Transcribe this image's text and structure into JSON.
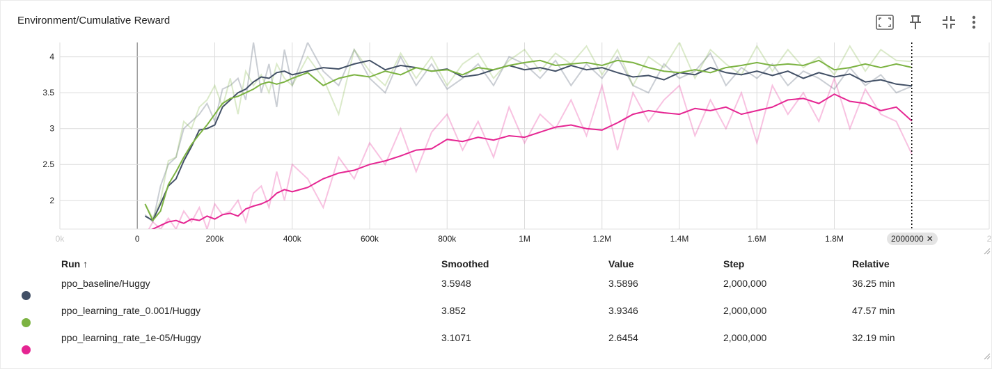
{
  "card": {
    "title": "Environment/Cumulative Reward",
    "toolbar": [
      {
        "name": "fullscreen-icon"
      },
      {
        "name": "pin-icon"
      },
      {
        "name": "collapse-icon"
      },
      {
        "name": "more-vert-icon"
      }
    ]
  },
  "chart_data": {
    "type": "line",
    "title": "Environment/Cumulative Reward",
    "xlabel": "",
    "ylabel": "",
    "xlim": [
      -200000,
      2200000
    ],
    "ylim": [
      1.6,
      4.2
    ],
    "x_ticks": [
      "0k",
      "0",
      "200k",
      "400k",
      "600k",
      "800k",
      "1M",
      "1.2M",
      "1.4M",
      "1.6M",
      "1.8M",
      "2"
    ],
    "x_tick_values": [
      -200000,
      0,
      200000,
      400000,
      600000,
      800000,
      1000000,
      1200000,
      1400000,
      1600000,
      1800000,
      2200000
    ],
    "y_ticks": [
      "2",
      "2.5",
      "3",
      "3.5",
      "4"
    ],
    "y_tick_values": [
      2,
      2.5,
      3,
      3.5,
      4
    ],
    "grid": true,
    "hover_step": 2000000,
    "hover_step_label": "2000000",
    "x": [
      20000,
      40000,
      60000,
      80000,
      100000,
      120000,
      140000,
      160000,
      180000,
      200000,
      220000,
      240000,
      260000,
      280000,
      300000,
      320000,
      340000,
      360000,
      380000,
      400000,
      440000,
      480000,
      520000,
      560000,
      600000,
      640000,
      680000,
      720000,
      760000,
      800000,
      840000,
      880000,
      920000,
      960000,
      1000000,
      1040000,
      1080000,
      1120000,
      1160000,
      1200000,
      1240000,
      1280000,
      1320000,
      1360000,
      1400000,
      1440000,
      1480000,
      1520000,
      1560000,
      1600000,
      1640000,
      1680000,
      1720000,
      1760000,
      1800000,
      1840000,
      1880000,
      1920000,
      1960000,
      2000000
    ],
    "series": [
      {
        "name": "ppo_baseline/Huggy",
        "color": "#425066",
        "smoothed": [
          1.78,
          1.72,
          1.95,
          2.2,
          2.3,
          2.55,
          2.75,
          2.98,
          3.0,
          3.05,
          3.3,
          3.4,
          3.5,
          3.55,
          3.65,
          3.72,
          3.7,
          3.78,
          3.8,
          3.75,
          3.8,
          3.85,
          3.83,
          3.9,
          3.95,
          3.82,
          3.88,
          3.85,
          3.8,
          3.83,
          3.72,
          3.75,
          3.82,
          3.88,
          3.82,
          3.85,
          3.8,
          3.88,
          3.82,
          3.85,
          3.78,
          3.72,
          3.74,
          3.68,
          3.78,
          3.75,
          3.85,
          3.78,
          3.75,
          3.8,
          3.74,
          3.8,
          3.7,
          3.78,
          3.72,
          3.76,
          3.65,
          3.68,
          3.62,
          3.5948
        ],
        "raw": [
          1.8,
          1.7,
          2.2,
          2.5,
          2.6,
          3.0,
          3.1,
          3.2,
          3.35,
          3.1,
          3.55,
          3.6,
          3.7,
          3.4,
          4.2,
          3.5,
          3.9,
          3.3,
          4.1,
          3.6,
          4.2,
          3.8,
          3.6,
          4.1,
          3.7,
          3.5,
          4.0,
          3.6,
          3.9,
          3.55,
          3.7,
          3.9,
          3.6,
          4.0,
          3.9,
          3.7,
          3.95,
          3.6,
          3.9,
          3.7,
          4.0,
          3.6,
          3.5,
          3.9,
          3.7,
          3.8,
          4.05,
          3.6,
          3.85,
          3.7,
          3.9,
          3.6,
          3.8,
          3.7,
          3.55,
          3.85,
          3.6,
          3.75,
          3.5,
          3.5896
        ]
      },
      {
        "name": "ppo_learning_rate_0.001/Huggy",
        "color": "#7cb342",
        "smoothed": [
          1.95,
          1.72,
          1.85,
          2.22,
          2.4,
          2.6,
          2.78,
          2.92,
          3.05,
          3.2,
          3.35,
          3.42,
          3.45,
          3.5,
          3.55,
          3.62,
          3.65,
          3.62,
          3.65,
          3.7,
          3.78,
          3.6,
          3.7,
          3.75,
          3.72,
          3.8,
          3.75,
          3.85,
          3.8,
          3.82,
          3.75,
          3.85,
          3.82,
          3.88,
          3.92,
          3.95,
          3.88,
          3.9,
          3.92,
          3.88,
          3.95,
          3.92,
          3.85,
          3.8,
          3.78,
          3.82,
          3.78,
          3.85,
          3.88,
          3.92,
          3.88,
          3.9,
          3.88,
          3.95,
          3.82,
          3.85,
          3.9,
          3.85,
          3.9,
          3.852
        ],
        "raw": [
          1.95,
          1.75,
          2.0,
          2.55,
          2.6,
          3.1,
          3.0,
          3.3,
          3.4,
          3.6,
          3.3,
          3.7,
          3.2,
          3.8,
          3.6,
          3.75,
          3.5,
          3.9,
          3.7,
          3.6,
          4.0,
          3.7,
          3.2,
          4.1,
          3.8,
          3.6,
          4.05,
          3.7,
          4.0,
          3.6,
          3.9,
          4.05,
          3.7,
          3.95,
          4.1,
          3.8,
          4.05,
          3.9,
          4.15,
          3.75,
          4.1,
          3.6,
          4.0,
          3.85,
          4.2,
          3.7,
          4.1,
          3.9,
          3.75,
          4.15,
          3.8,
          4.1,
          3.85,
          4.0,
          3.75,
          4.15,
          3.8,
          4.1,
          3.95,
          3.9346
        ]
      },
      {
        "name": "ppo_learning_rate_1e-05/Huggy",
        "color": "#e52592",
        "smoothed": [
          1.55,
          1.6,
          1.65,
          1.7,
          1.72,
          1.68,
          1.74,
          1.72,
          1.78,
          1.74,
          1.8,
          1.82,
          1.78,
          1.88,
          1.92,
          1.95,
          2.0,
          2.1,
          2.15,
          2.12,
          2.18,
          2.3,
          2.38,
          2.42,
          2.5,
          2.55,
          2.62,
          2.7,
          2.72,
          2.85,
          2.82,
          2.88,
          2.84,
          2.9,
          2.88,
          2.95,
          3.02,
          3.05,
          3.0,
          2.98,
          3.08,
          3.2,
          3.25,
          3.22,
          3.2,
          3.28,
          3.25,
          3.3,
          3.2,
          3.25,
          3.3,
          3.4,
          3.42,
          3.35,
          3.48,
          3.38,
          3.35,
          3.25,
          3.3,
          3.1071
        ],
        "raw": [
          1.5,
          1.7,
          1.6,
          1.75,
          1.6,
          1.85,
          1.7,
          1.9,
          1.6,
          1.95,
          1.8,
          1.85,
          2.0,
          1.7,
          2.1,
          2.2,
          1.9,
          2.4,
          2.0,
          2.5,
          2.3,
          1.9,
          2.6,
          2.3,
          2.8,
          2.5,
          3.0,
          2.4,
          2.95,
          3.2,
          2.7,
          3.1,
          2.6,
          3.3,
          2.8,
          3.2,
          3.0,
          3.4,
          2.9,
          3.6,
          2.7,
          3.5,
          3.1,
          3.4,
          3.6,
          2.9,
          3.4,
          3.0,
          3.5,
          2.8,
          3.6,
          3.2,
          3.5,
          3.1,
          3.7,
          3.0,
          3.55,
          3.2,
          3.1,
          2.6454
        ]
      }
    ]
  },
  "table": {
    "headers": {
      "run": "Run ↑",
      "smoothed": "Smoothed",
      "value": "Value",
      "step": "Step",
      "relative": "Relative"
    },
    "rows": [
      {
        "color": "#425066",
        "run": "ppo_baseline/Huggy",
        "smoothed": "3.5948",
        "value": "3.5896",
        "step": "2,000,000",
        "relative": "36.25 min"
      },
      {
        "color": "#7cb342",
        "run": "ppo_learning_rate_0.001/Huggy",
        "smoothed": "3.852",
        "value": "3.9346",
        "step": "2,000,000",
        "relative": "47.57 min"
      },
      {
        "color": "#e52592",
        "run": "ppo_learning_rate_1e-05/Huggy",
        "smoothed": "3.1071",
        "value": "2.6454",
        "step": "2,000,000",
        "relative": "32.19 min"
      }
    ]
  }
}
